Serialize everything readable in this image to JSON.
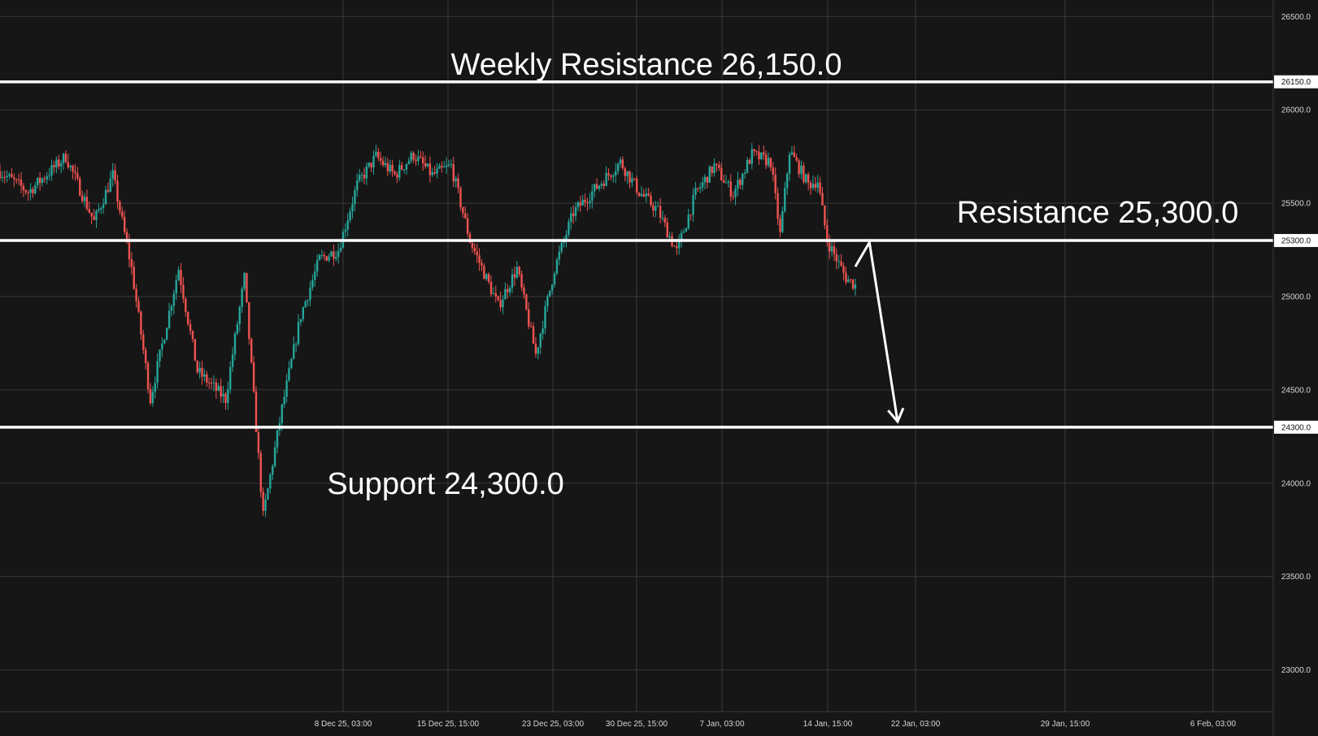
{
  "chart_data": {
    "type": "candlestick",
    "colors": {
      "background": "#161616",
      "grid": "#3a3a3a",
      "up": "#26a69a",
      "down": "#ef5350",
      "level": "#ffffff"
    },
    "y_axis": {
      "ticks": [
        26500,
        26000,
        25500,
        25000,
        24500,
        24000,
        23500,
        23000
      ],
      "tick_labels": [
        "26500.0",
        "26000.0",
        "25500.0",
        "25000.0",
        "24500.0",
        "24000.0",
        "23500.0",
        "23000.0"
      ]
    },
    "x_axis": {
      "tick_labels": [
        "8 Dec 25, 03:00",
        "15 Dec 25, 15:00",
        "23 Dec 25, 03:00",
        "30 Dec 25, 15:00",
        "7 Jan, 03:00",
        "14 Jan, 15:00",
        "22 Jan, 03:00",
        "29 Jan, 15:00",
        "6 Feb, 03:00"
      ]
    },
    "levels": [
      {
        "value": 26150,
        "label": "26150.0",
        "annotation": "Weekly Resistance 26,150.0"
      },
      {
        "value": 25300,
        "label": "25300.0",
        "annotation": "Resistance 25,300.0"
      },
      {
        "value": 24300,
        "label": "24300.0",
        "annotation": "Support 24,300.0"
      }
    ],
    "price_path": [
      [
        0,
        25670
      ],
      [
        3,
        25560
      ],
      [
        7,
        25750
      ],
      [
        10,
        25400
      ],
      [
        12,
        25650
      ],
      [
        14,
        25150
      ],
      [
        16,
        24450
      ],
      [
        19,
        25150
      ],
      [
        21,
        24600
      ],
      [
        24,
        24450
      ],
      [
        26,
        25100
      ],
      [
        28,
        23820
      ],
      [
        30,
        24400
      ],
      [
        32,
        24900
      ],
      [
        34,
        25200
      ],
      [
        36,
        25250
      ],
      [
        38,
        25600
      ],
      [
        40,
        25750
      ],
      [
        42,
        25650
      ],
      [
        44,
        25760
      ],
      [
        46,
        25650
      ],
      [
        48,
        25700
      ],
      [
        50,
        25300
      ],
      [
        53,
        24950
      ],
      [
        55,
        25150
      ],
      [
        57,
        24690
      ],
      [
        59,
        25150
      ],
      [
        61,
        25450
      ],
      [
        63,
        25560
      ],
      [
        66,
        25720
      ],
      [
        68,
        25560
      ],
      [
        70,
        25460
      ],
      [
        72,
        25240
      ],
      [
        74,
        25550
      ],
      [
        76,
        25700
      ],
      [
        78,
        25550
      ],
      [
        80,
        25760
      ],
      [
        82,
        25720
      ],
      [
        83,
        25330
      ],
      [
        84,
        25780
      ],
      [
        86,
        25600
      ],
      [
        87,
        25620
      ],
      [
        88,
        25300
      ],
      [
        90,
        25100
      ],
      [
        91,
        25060
      ]
    ],
    "projection": [
      [
        91,
        25160
      ],
      [
        92.5,
        25290
      ],
      [
        95.5,
        24330
      ]
    ]
  }
}
